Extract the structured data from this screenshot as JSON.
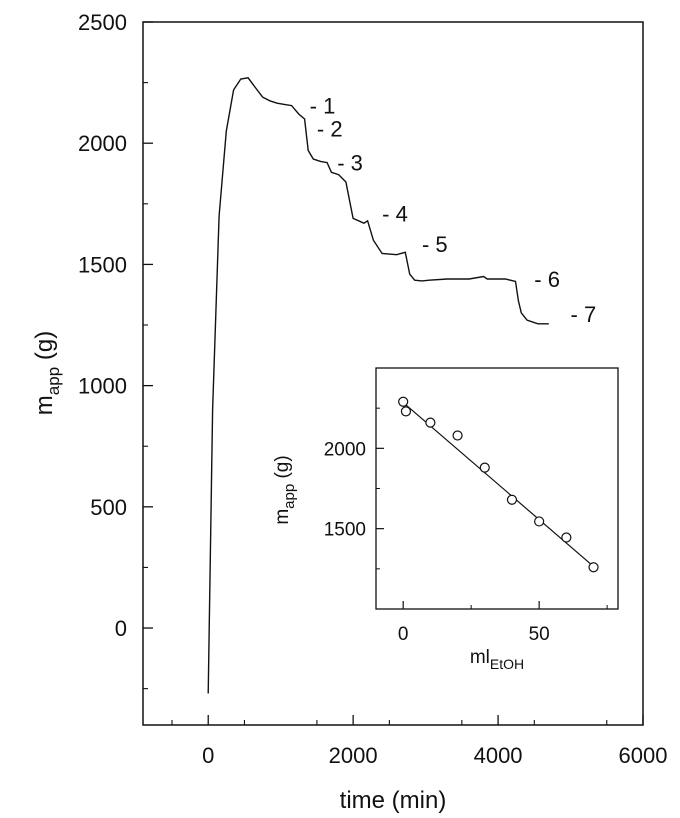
{
  "chart_data": [
    {
      "type": "line",
      "title": "",
      "xlabel": "time (min)",
      "ylabel": {
        "main": "m",
        "sub": "app",
        "unit": " (g)"
      },
      "xlim": [
        -900,
        6000
      ],
      "ylim": [
        -400,
        2500
      ],
      "xticks": [
        0,
        2000,
        4000,
        6000
      ],
      "yticks": [
        0,
        500,
        1000,
        1500,
        2000,
        2500
      ],
      "grid": false,
      "series": [
        {
          "x": [
            0,
            60,
            150,
            250,
            350,
            450,
            550,
            650,
            750,
            850,
            950,
            1050,
            1150,
            1250,
            1330,
            1380,
            1450,
            1550,
            1640,
            1700,
            1800,
            1900,
            2000,
            2150,
            2200,
            2280,
            2400,
            2600,
            2720,
            2780,
            2850,
            2950,
            3050,
            3300,
            3600,
            3800,
            3850,
            3950,
            4100,
            4240,
            4280,
            4320,
            4400,
            4550,
            4700
          ],
          "y": [
            -270,
            900,
            1700,
            2050,
            2220,
            2265,
            2270,
            2230,
            2190,
            2175,
            2165,
            2160,
            2155,
            2120,
            2100,
            1970,
            1935,
            1925,
            1920,
            1880,
            1870,
            1840,
            1690,
            1670,
            1680,
            1600,
            1545,
            1540,
            1550,
            1460,
            1435,
            1432,
            1435,
            1440,
            1440,
            1450,
            1440,
            1440,
            1440,
            1430,
            1350,
            1300,
            1270,
            1255,
            1255
          ]
        }
      ],
      "annotations": [
        "- 1",
        "- 2",
        "- 3",
        "- 4",
        "- 5",
        "- 6",
        "- 7"
      ]
    },
    {
      "type": "scatter",
      "title": "",
      "xlabel": {
        "main": "ml",
        "sub": "EtOH"
      },
      "ylabel": {
        "main": "m",
        "sub": "app",
        "unit": " (g)"
      },
      "xlim": [
        -10,
        79
      ],
      "ylim": [
        1000,
        2500
      ],
      "xticks": [
        0,
        50
      ],
      "yticks": [
        1500,
        2000
      ],
      "grid": false,
      "points": [
        {
          "x": 0,
          "y": 2290
        },
        {
          "x": 1,
          "y": 2230
        },
        {
          "x": 10,
          "y": 2160
        },
        {
          "x": 20,
          "y": 2080
        },
        {
          "x": 30,
          "y": 1880
        },
        {
          "x": 40,
          "y": 1680
        },
        {
          "x": 50,
          "y": 1545
        },
        {
          "x": 60,
          "y": 1445
        },
        {
          "x": 70,
          "y": 1260
        }
      ],
      "fit_line": {
        "x": [
          0,
          70
        ],
        "y": [
          2285,
          1265
        ]
      }
    }
  ]
}
